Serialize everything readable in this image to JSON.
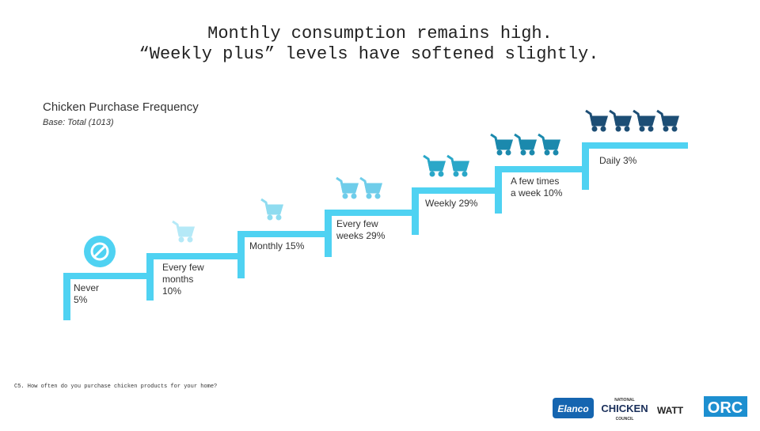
{
  "header": {
    "title_lines": [
      "Monthly consumption remains high.",
      "“Weekly plus” levels have softened slightly."
    ]
  },
  "chart_heading": {
    "title": "Chicken Purchase Frequency",
    "base": "Base: Total (1013)"
  },
  "steps": [
    {
      "label_lines": [
        "Never",
        "5%"
      ]
    },
    {
      "label_lines": [
        "Every few",
        "months",
        "10%"
      ]
    },
    {
      "label_lines": [
        "Monthly 15%"
      ]
    },
    {
      "label_lines": [
        "Every few",
        "weeks 29%"
      ]
    },
    {
      "label_lines": [
        "Weekly 29%"
      ]
    },
    {
      "label_lines": [
        "A few times",
        "a week 10%"
      ]
    },
    {
      "label_lines": [
        "Daily 3%"
      ]
    }
  ],
  "footnote": "C5. How often do you purchase chicken products for your home?",
  "logos": [
    "Elanco",
    "NATIONAL",
    "CHICKEN",
    "COUNCIL",
    "WATT",
    "ORC"
  ]
}
